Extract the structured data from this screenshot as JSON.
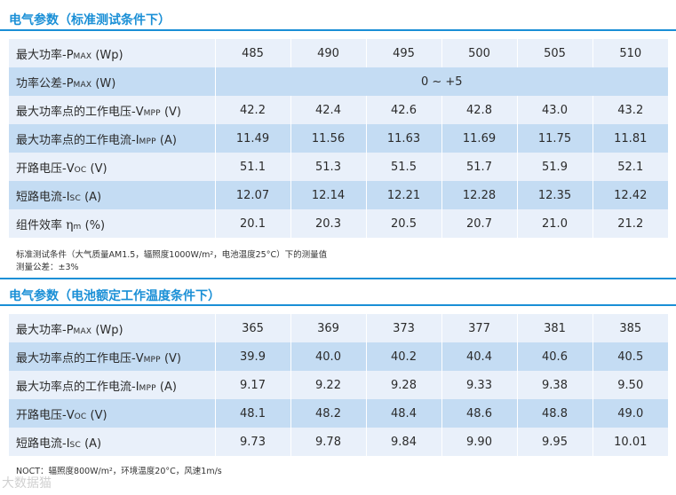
{
  "stc": {
    "title": "电气参数（标准测试条件下）",
    "rows": [
      {
        "label_pre": "最大功率-P",
        "label_sub": "MAX",
        "label_post": " (Wp)",
        "values": [
          "485",
          "490",
          "495",
          "500",
          "505",
          "510"
        ]
      },
      {
        "label_pre": "功率公差-P",
        "label_sub": "MAX",
        "label_post": " (W)",
        "merged": "0 ~ +5"
      },
      {
        "label_pre": "最大功率点的工作电压-V",
        "label_sub": "MPP",
        "label_post": " (V)",
        "values": [
          "42.2",
          "42.4",
          "42.6",
          "42.8",
          "43.0",
          "43.2"
        ]
      },
      {
        "label_pre": "最大功率点的工作电流-I",
        "label_sub": "MPP",
        "label_post": " (A)",
        "values": [
          "11.49",
          "11.56",
          "11.63",
          "11.69",
          "11.75",
          "11.81"
        ]
      },
      {
        "label_pre": "开路电压-V",
        "label_sub": "OC",
        "label_post": " (V)",
        "values": [
          "51.1",
          "51.3",
          "51.5",
          "51.7",
          "51.9",
          "52.1"
        ]
      },
      {
        "label_pre": "短路电流-I",
        "label_sub": "SC",
        "label_post": " (A)",
        "values": [
          "12.07",
          "12.14",
          "12.21",
          "12.28",
          "12.35",
          "12.42"
        ]
      },
      {
        "label_pre": "组件效率 ",
        "label_eta": "η",
        "label_sub": "m",
        "label_post": " (%)",
        "values": [
          "20.1",
          "20.3",
          "20.5",
          "20.7",
          "21.0",
          "21.2"
        ]
      }
    ],
    "note1": "标准测试条件（大气质量AM1.5，辐照度1000W/m²，电池温度25°C）下的测量值",
    "note2": "测量公差：±3%"
  },
  "noct": {
    "title": "电气参数（电池额定工作温度条件下）",
    "rows": [
      {
        "label_pre": "最大功率-P",
        "label_sub": "MAX",
        "label_post": " (Wp)",
        "values": [
          "365",
          "369",
          "373",
          "377",
          "381",
          "385"
        ]
      },
      {
        "label_pre": "最大功率点的工作电压-V",
        "label_sub": "MPP",
        "label_post": " (V)",
        "values": [
          "39.9",
          "40.0",
          "40.2",
          "40.4",
          "40.6",
          "40.5"
        ]
      },
      {
        "label_pre": "最大功率点的工作电流-I",
        "label_sub": "MPP",
        "label_post": " (A)",
        "values": [
          "9.17",
          "9.22",
          "9.28",
          "9.33",
          "9.38",
          "9.50"
        ]
      },
      {
        "label_pre": "开路电压-V",
        "label_sub": "OC",
        "label_post": " (V)",
        "values": [
          "48.1",
          "48.2",
          "48.4",
          "48.6",
          "48.8",
          "49.0"
        ]
      },
      {
        "label_pre": "短路电流-I",
        "label_sub": "SC",
        "label_post": " (A)",
        "values": [
          "9.73",
          "9.78",
          "9.84",
          "9.90",
          "9.95",
          "10.01"
        ]
      }
    ],
    "note1": "NOCT：辐照度800W/m²，环境温度20°C，风速1m/s"
  },
  "watermark": "大数据猫",
  "colors": {
    "accent": "#1a8fd6",
    "row_light": "#e9f0fa",
    "row_dark": "#c4dcf3"
  }
}
